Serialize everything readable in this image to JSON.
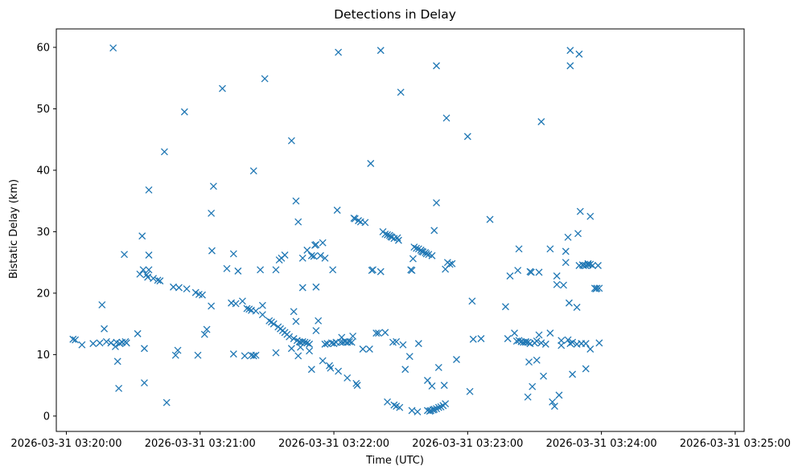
{
  "chart_data": {
    "type": "scatter",
    "title": "Detections in Delay",
    "xlabel": "Time (UTC)",
    "ylabel": "Bistatic Delay (km)",
    "marker": "x",
    "color": "#1f77b4",
    "grid": false,
    "xlim": [
      -4.5,
      304
    ],
    "ylim": [
      -2.5,
      63
    ],
    "x_unit": "seconds after 2026-03-31 03:20:00",
    "xticks": [
      {
        "value": 0,
        "label": "2026-03-31 03:20:00"
      },
      {
        "value": 60,
        "label": "2026-03-31 03:21:00"
      },
      {
        "value": 120,
        "label": "2026-03-31 03:22:00"
      },
      {
        "value": 180,
        "label": "2026-03-31 03:23:00"
      },
      {
        "value": 240,
        "label": "2026-03-31 03:24:00"
      },
      {
        "value": 300,
        "label": "2026-03-31 03:25:00"
      }
    ],
    "yticks": [
      {
        "value": 0,
        "label": "0"
      },
      {
        "value": 10,
        "label": "10"
      },
      {
        "value": 20,
        "label": "20"
      },
      {
        "value": 30,
        "label": "30"
      },
      {
        "value": 40,
        "label": "40"
      },
      {
        "value": 50,
        "label": "50"
      },
      {
        "value": 60,
        "label": "60"
      }
    ],
    "series": [
      {
        "name": "Detections",
        "points": [
          [
            3,
            12.5
          ],
          [
            4,
            12.4
          ],
          [
            7,
            11.6
          ],
          [
            12,
            11.8
          ],
          [
            15,
            11.9
          ],
          [
            16,
            18.1
          ],
          [
            17,
            14.2
          ],
          [
            18,
            12.1
          ],
          [
            20,
            11.9
          ],
          [
            21,
            59.9
          ],
          [
            22,
            11.3
          ],
          [
            22.5,
            12
          ],
          [
            23,
            8.9
          ],
          [
            23.5,
            4.5
          ],
          [
            24,
            11.8
          ],
          [
            25,
            12
          ],
          [
            26,
            26.3
          ],
          [
            26.5,
            12.1
          ],
          [
            27,
            11.9
          ],
          [
            32,
            13.4
          ],
          [
            33,
            23.1
          ],
          [
            34,
            29.3
          ],
          [
            34.5,
            23.8
          ],
          [
            35,
            11
          ],
          [
            35,
            5.4
          ],
          [
            36,
            23
          ],
          [
            36.5,
            22.6
          ],
          [
            37,
            36.8
          ],
          [
            37,
            26.2
          ],
          [
            37,
            23.8
          ],
          [
            39,
            22.4
          ],
          [
            41,
            22.1
          ],
          [
            42,
            22
          ],
          [
            44,
            43
          ],
          [
            45,
            2.2
          ],
          [
            48,
            21
          ],
          [
            49,
            9.9
          ],
          [
            50,
            10.7
          ],
          [
            50.5,
            20.9
          ],
          [
            53,
            49.5
          ],
          [
            54,
            20.7
          ],
          [
            58,
            20.1
          ],
          [
            59,
            9.9
          ],
          [
            59.5,
            19.8
          ],
          [
            61,
            19.7
          ],
          [
            62,
            13.3
          ],
          [
            63,
            14.1
          ],
          [
            65,
            17.9
          ],
          [
            65,
            33
          ],
          [
            65.3,
            26.9
          ],
          [
            66,
            37.4
          ],
          [
            70,
            53.3
          ],
          [
            72,
            24
          ],
          [
            74,
            18.4
          ],
          [
            75,
            26.4
          ],
          [
            75,
            10.1
          ],
          [
            76,
            18.3
          ],
          [
            77,
            23.6
          ],
          [
            79,
            18.7
          ],
          [
            80,
            9.8
          ],
          [
            81,
            17.5
          ],
          [
            82,
            17.4
          ],
          [
            83,
            17.2
          ],
          [
            83,
            9.9
          ],
          [
            84,
            39.9
          ],
          [
            84,
            9.8
          ],
          [
            85,
            9.9
          ],
          [
            85,
            17.1
          ],
          [
            87,
            23.8
          ],
          [
            88,
            18
          ],
          [
            88,
            16.5
          ],
          [
            89,
            54.9
          ],
          [
            91,
            15.5
          ],
          [
            92,
            15.3
          ],
          [
            93,
            15
          ],
          [
            94,
            10.3
          ],
          [
            94,
            23.8
          ],
          [
            95,
            14.5
          ],
          [
            95.5,
            25.4
          ],
          [
            96,
            14.2
          ],
          [
            96.5,
            25.7
          ],
          [
            97,
            13.9
          ],
          [
            98,
            26.2
          ],
          [
            98,
            13.6
          ],
          [
            99,
            13.3
          ],
          [
            100,
            12.9
          ],
          [
            101,
            11
          ],
          [
            101,
            44.8
          ],
          [
            102,
            12.6
          ],
          [
            102,
            17
          ],
          [
            103,
            35
          ],
          [
            103,
            15.4
          ],
          [
            103.5,
            12.3
          ],
          [
            104,
            31.6
          ],
          [
            104,
            9.8
          ],
          [
            104.5,
            12.1
          ],
          [
            105,
            12
          ],
          [
            105,
            11.2
          ],
          [
            106,
            25.7
          ],
          [
            106,
            20.9
          ],
          [
            106,
            12.1
          ],
          [
            107,
            12
          ],
          [
            108,
            27
          ],
          [
            108,
            11.9
          ],
          [
            109,
            11.7
          ],
          [
            109,
            10.6
          ],
          [
            110,
            26.1
          ],
          [
            110,
            7.6
          ],
          [
            111,
            26
          ],
          [
            111.5,
            27.8
          ],
          [
            112,
            27.9
          ],
          [
            112,
            21
          ],
          [
            112,
            13.9
          ],
          [
            113,
            15.5
          ],
          [
            114,
            26.1
          ],
          [
            115,
            9
          ],
          [
            115,
            28.2
          ],
          [
            116,
            25.7
          ],
          [
            116,
            11.7
          ],
          [
            117,
            11.8
          ],
          [
            118,
            8.2
          ],
          [
            118.5,
            7.8
          ],
          [
            119,
            11.9
          ],
          [
            119.5,
            23.8
          ],
          [
            120,
            11.8
          ],
          [
            121,
            12
          ],
          [
            121.5,
            33.5
          ],
          [
            122,
            59.2
          ],
          [
            122,
            7.3
          ],
          [
            123,
            12
          ],
          [
            123.5,
            12.8
          ],
          [
            124,
            12
          ],
          [
            125,
            12.1
          ],
          [
            126,
            12
          ],
          [
            126,
            6.2
          ],
          [
            127,
            12.1
          ],
          [
            128,
            12
          ],
          [
            128.5,
            13
          ],
          [
            129,
            32.2
          ],
          [
            129.5,
            32.1
          ],
          [
            130,
            5.3
          ],
          [
            130.5,
            5
          ],
          [
            131,
            31.8
          ],
          [
            132,
            31.6
          ],
          [
            133,
            10.9
          ],
          [
            134,
            31.5
          ],
          [
            136,
            10.9
          ],
          [
            136.5,
            41.1
          ],
          [
            137,
            23.7
          ],
          [
            137.5,
            23.8
          ],
          [
            139,
            13.5
          ],
          [
            140,
            13.5
          ],
          [
            141,
            23.5
          ],
          [
            141,
            59.5
          ],
          [
            142,
            30
          ],
          [
            143,
            29.6
          ],
          [
            143,
            13.6
          ],
          [
            144,
            29.5
          ],
          [
            144,
            2.3
          ],
          [
            145,
            29.4
          ],
          [
            145.5,
            29.2
          ],
          [
            146,
            29.1
          ],
          [
            146.5,
            12
          ],
          [
            147,
            1.8
          ],
          [
            147,
            28.9
          ],
          [
            148,
            12.1
          ],
          [
            148,
            1.6
          ],
          [
            148.5,
            29
          ],
          [
            149,
            28.6
          ],
          [
            149.5,
            1.4
          ],
          [
            150,
            52.7
          ],
          [
            151,
            11.6
          ],
          [
            152,
            7.6
          ],
          [
            154,
            9.7
          ],
          [
            154.5,
            23.8
          ],
          [
            155,
            23.7
          ],
          [
            155,
            0.9
          ],
          [
            155.5,
            25.6
          ],
          [
            156,
            27.5
          ],
          [
            157,
            27.3
          ],
          [
            157.5,
            0.7
          ],
          [
            158,
            27.2
          ],
          [
            158,
            11.8
          ],
          [
            159,
            27
          ],
          [
            159.5,
            26.8
          ],
          [
            160,
            26.7
          ],
          [
            161,
            26.6
          ],
          [
            161.5,
            26.4
          ],
          [
            162,
            5.8
          ],
          [
            162,
            0.9
          ],
          [
            162.5,
            26.3
          ],
          [
            163,
            0.8
          ],
          [
            163.5,
            0.9
          ],
          [
            164,
            26.1
          ],
          [
            164,
            4.9
          ],
          [
            164.5,
            1
          ],
          [
            165,
            30.2
          ],
          [
            165,
            1.1
          ],
          [
            166,
            57
          ],
          [
            166,
            1.2
          ],
          [
            166,
            34.7
          ],
          [
            167,
            7.9
          ],
          [
            167,
            1.4
          ],
          [
            168,
            1.5
          ],
          [
            169,
            1.7
          ],
          [
            169.5,
            5
          ],
          [
            170,
            2
          ],
          [
            170,
            23.9
          ],
          [
            170.5,
            48.5
          ],
          [
            171,
            25
          ],
          [
            172,
            24.7
          ],
          [
            173,
            24.8
          ],
          [
            175,
            9.2
          ],
          [
            180,
            45.5
          ],
          [
            181,
            4
          ],
          [
            182,
            18.7
          ],
          [
            182.5,
            12.5
          ],
          [
            186,
            12.6
          ],
          [
            190,
            32
          ],
          [
            197,
            17.8
          ],
          [
            198,
            12.6
          ],
          [
            199,
            22.8
          ],
          [
            201,
            13.5
          ],
          [
            202,
            12.2
          ],
          [
            202.5,
            23.7
          ],
          [
            203,
            27.2
          ],
          [
            203,
            12.3
          ],
          [
            204,
            12.1
          ],
          [
            205,
            12
          ],
          [
            206,
            12.1
          ],
          [
            206,
            12
          ],
          [
            207,
            12
          ],
          [
            207,
            3.1
          ],
          [
            207.5,
            8.8
          ],
          [
            208,
            23.5
          ],
          [
            208,
            11.8
          ],
          [
            208.5,
            23.4
          ],
          [
            209,
            4.8
          ],
          [
            210,
            11.9
          ],
          [
            211,
            12.2
          ],
          [
            211,
            9.1
          ],
          [
            212,
            23.4
          ],
          [
            212,
            13.2
          ],
          [
            213,
            11.9
          ],
          [
            213,
            47.9
          ],
          [
            214,
            6.5
          ],
          [
            215,
            11.7
          ],
          [
            217,
            27.2
          ],
          [
            217,
            13.5
          ],
          [
            218,
            2.3
          ],
          [
            219,
            1.6
          ],
          [
            220,
            21.4
          ],
          [
            220,
            22.8
          ],
          [
            221,
            3.4
          ],
          [
            222,
            11.5
          ],
          [
            222,
            12.3
          ],
          [
            223,
            21.3
          ],
          [
            224,
            26.8
          ],
          [
            224,
            25
          ],
          [
            225,
            29.1
          ],
          [
            225,
            12.4
          ],
          [
            225.5,
            18.4
          ],
          [
            226,
            59.5
          ],
          [
            226,
            57
          ],
          [
            226,
            11.8
          ],
          [
            227,
            12
          ],
          [
            227,
            6.8
          ],
          [
            229,
            11.7
          ],
          [
            229,
            17.7
          ],
          [
            229.5,
            29.7
          ],
          [
            230,
            58.9
          ],
          [
            230,
            24.5
          ],
          [
            230.5,
            33.3
          ],
          [
            231,
            11.8
          ],
          [
            231.5,
            24.6
          ],
          [
            232,
            24.5
          ],
          [
            233,
            11.8
          ],
          [
            233,
            24.5
          ],
          [
            233,
            7.7
          ],
          [
            234,
            24.6
          ],
          [
            234,
            24.8
          ],
          [
            235,
            32.5
          ],
          [
            235,
            10.9
          ],
          [
            235,
            24.7
          ],
          [
            236,
            24.5
          ],
          [
            237,
            20.8
          ],
          [
            237.5,
            20.7
          ],
          [
            238,
            20.8
          ],
          [
            238.5,
            24.5
          ],
          [
            239,
            11.9
          ],
          [
            239,
            20.8
          ]
        ]
      }
    ]
  }
}
